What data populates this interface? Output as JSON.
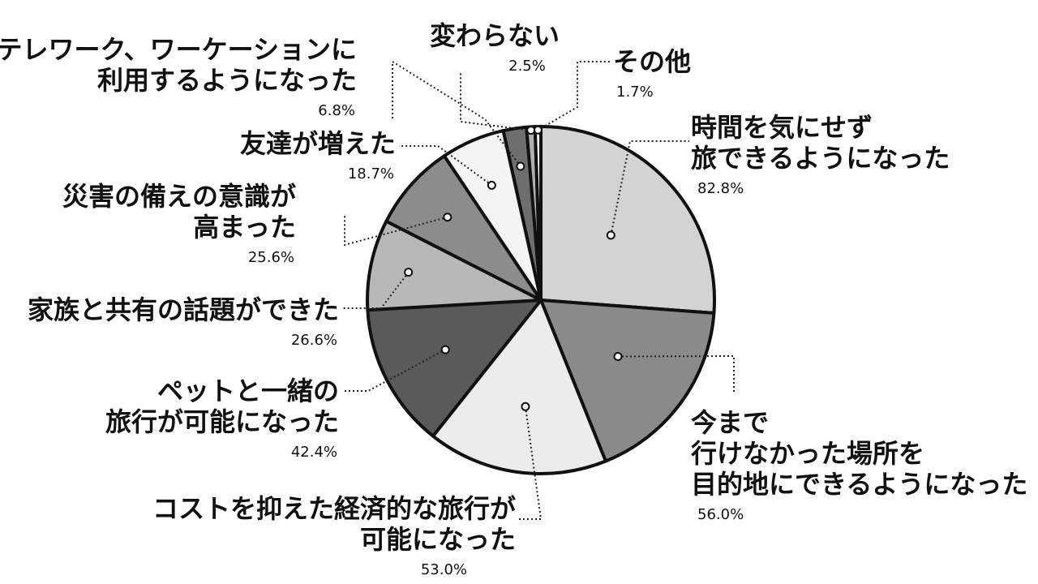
{
  "chart_data": {
    "type": "pie",
    "title": "",
    "slice_order": "clockwise from 12 o'clock, sized by each value's share of the total",
    "slices": [
      {
        "label": [
          "時間を気にせず",
          "旅できるようになった"
        ],
        "value": 82.8,
        "value_text": "82.8%",
        "color": "#d3d3d3"
      },
      {
        "label": [
          "今まで",
          "行けなかった場所を",
          "目的地にできるようになった"
        ],
        "value": 56.0,
        "value_text": "56.0%",
        "color": "#8a8a8a"
      },
      {
        "label": [
          "コストを抑えた経済的な旅行が",
          "可能になった"
        ],
        "value": 53.0,
        "value_text": "53.0%",
        "color": "#ececec"
      },
      {
        "label": [
          "ペットと一緒の",
          "旅行が可能になった"
        ],
        "value": 42.4,
        "value_text": "42.4%",
        "color": "#5a5a5a"
      },
      {
        "label": [
          "家族と共有の話題ができた"
        ],
        "value": 26.6,
        "value_text": "26.6%",
        "color": "#b8b8b8"
      },
      {
        "label": [
          "災害の備えの意識が",
          "高まった"
        ],
        "value": 25.6,
        "value_text": "25.6%",
        "color": "#8c8c8c"
      },
      {
        "label": [
          "友達が増えた"
        ],
        "value": 18.7,
        "value_text": "18.7%",
        "color": "#f4f4f4"
      },
      {
        "label": [
          "テレワーク、ワーケーションに",
          "利用するようになった"
        ],
        "value": 6.8,
        "value_text": "6.8%",
        "color": "#6e6e6e"
      },
      {
        "label": [
          "変わらない"
        ],
        "value": 2.5,
        "value_text": "2.5%",
        "color": "#b0b0b0"
      },
      {
        "label": [
          "その他"
        ],
        "value": 1.7,
        "value_text": "1.7%",
        "color": "#ffffff"
      }
    ]
  }
}
